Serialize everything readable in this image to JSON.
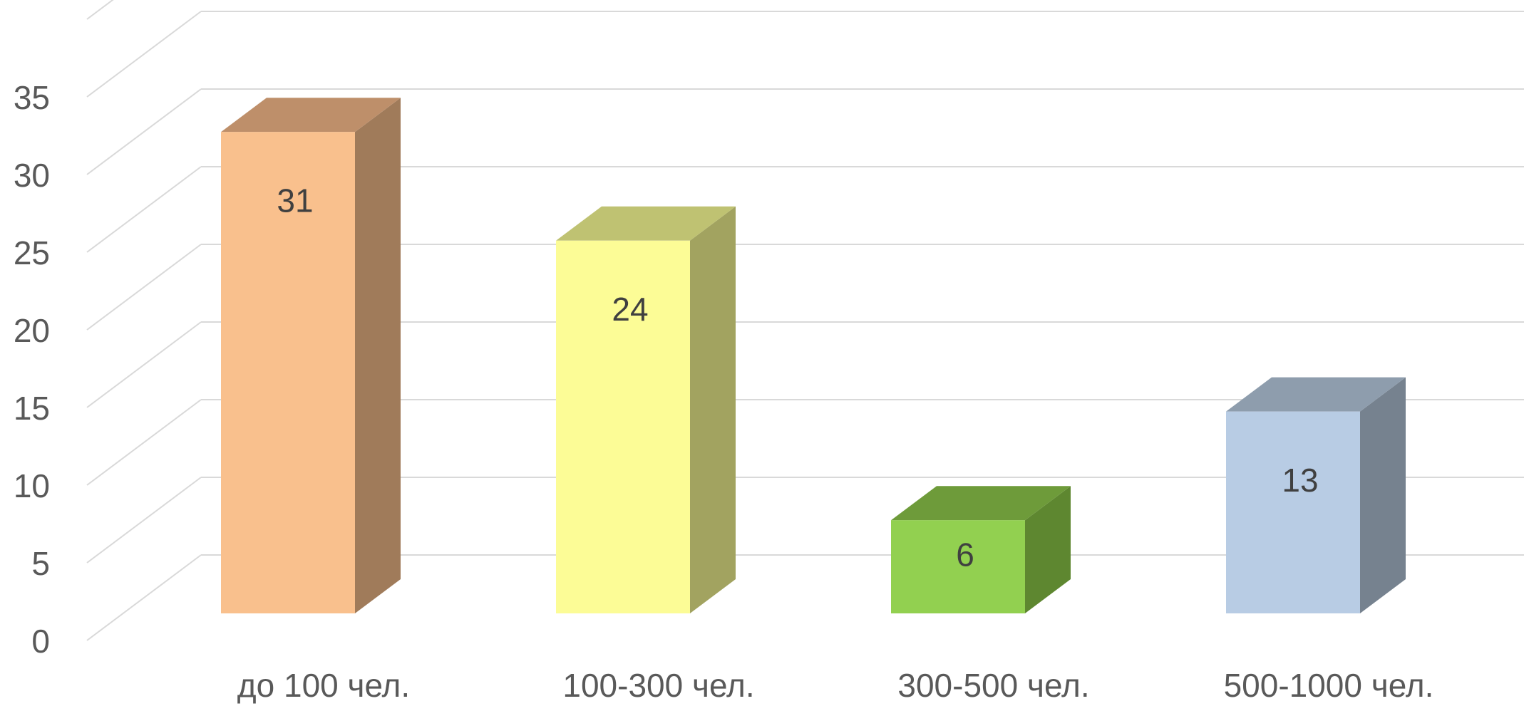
{
  "chart_data": {
    "type": "bar",
    "style": "3d-column",
    "title": "",
    "xlabel": "",
    "ylabel": "",
    "categories": [
      "до 100 чел.",
      "100-300 чел.",
      "300-500 чел.",
      "500-1000 чел."
    ],
    "values": [
      31,
      24,
      6,
      13
    ],
    "data_labels": [
      "31",
      "24",
      "6",
      "13"
    ],
    "ylim": [
      0,
      40
    ],
    "yticks": [
      0,
      5,
      10,
      15,
      20,
      25,
      30,
      35
    ],
    "ytick_labels": [
      "0",
      "5",
      "10",
      "15",
      "20",
      "25",
      "30",
      "35"
    ],
    "grid": true,
    "legend": "none",
    "colors": {
      "front": [
        "#F9C08D",
        "#FCFC96",
        "#92D050",
        "#B8CCE4"
      ],
      "side": [
        "#A07B5A",
        "#A2A360",
        "#5E8730",
        "#76828F"
      ],
      "top": [
        "#BE8F6A",
        "#BFC272",
        "#6E9B3A",
        "#8E9DAD"
      ],
      "grid": "#D9D9D9",
      "axis_text": "#595959",
      "label_text": "#404040"
    }
  }
}
